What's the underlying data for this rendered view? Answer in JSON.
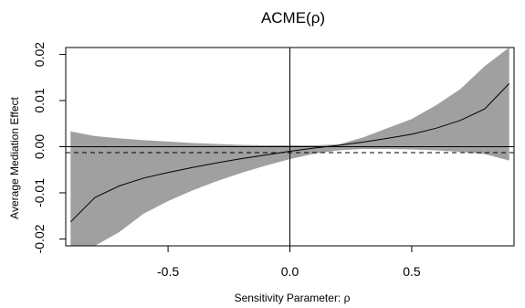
{
  "chart_data": {
    "type": "line",
    "title": "ACME(ρ)",
    "xlabel": "Sensitivity Parameter: ρ",
    "ylabel": "Average Mediation Effect",
    "xlim": [
      -0.92,
      0.92
    ],
    "ylim": [
      -0.0215,
      0.0215
    ],
    "x_ticks": [
      -0.5,
      0.0,
      0.5
    ],
    "x_tick_labels": [
      "-0.5",
      "0.0",
      "0.5"
    ],
    "y_ticks": [
      -0.02,
      -0.01,
      0.0,
      0.01,
      0.02
    ],
    "y_tick_labels": [
      "-0.02",
      "-0.01",
      "0.00",
      "0.01",
      "0.02"
    ],
    "reference_lines": {
      "horizontal_solid": 0.0,
      "vertical_solid": 0.0,
      "horizontal_dashed": -0.0013
    },
    "series": [
      {
        "kind": "line",
        "x": [
          -0.9,
          -0.8,
          -0.7,
          -0.6,
          -0.5,
          -0.4,
          -0.3,
          -0.2,
          -0.1,
          0.0,
          0.1,
          0.2,
          0.3,
          0.4,
          0.5,
          0.6,
          0.7,
          0.8,
          0.9
        ],
        "values": [
          -0.0163,
          -0.011,
          -0.0085,
          -0.0068,
          -0.0056,
          -0.0045,
          -0.0035,
          -0.0026,
          -0.0018,
          -0.001,
          -0.0003,
          0.0003,
          0.001,
          0.0018,
          0.0027,
          0.004,
          0.0057,
          0.0082,
          0.0137
        ]
      },
      {
        "kind": "band",
        "x": [
          -0.9,
          -0.8,
          -0.7,
          -0.6,
          -0.5,
          -0.4,
          -0.3,
          -0.2,
          -0.1,
          0.0,
          0.1,
          0.2,
          0.3,
          0.4,
          0.5,
          0.6,
          0.7,
          0.8,
          0.9
        ],
        "lower": [
          -0.0215,
          -0.0215,
          -0.0185,
          -0.0145,
          -0.0118,
          -0.0095,
          -0.0075,
          -0.0057,
          -0.0041,
          -0.0027,
          -0.0015,
          -0.0008,
          -0.0005,
          -0.0005,
          -0.0006,
          -0.0008,
          -0.0011,
          -0.0016,
          -0.003
        ],
        "upper": [
          0.0033,
          0.0023,
          0.0018,
          0.0014,
          0.0011,
          0.0008,
          0.0006,
          0.0004,
          0.0003,
          0.0003,
          0.0003,
          0.0005,
          0.002,
          0.004,
          0.006,
          0.009,
          0.0125,
          0.0175,
          0.0215
        ]
      }
    ],
    "colors": {
      "band": "#a0a0a0",
      "line": "#000000",
      "axis": "#000000"
    },
    "grid": false
  }
}
